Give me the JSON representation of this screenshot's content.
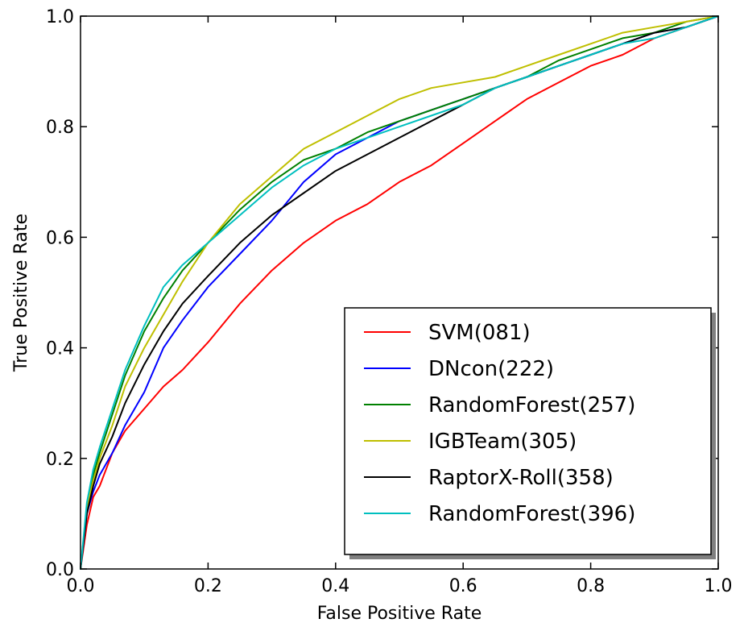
{
  "chart_data": {
    "type": "line",
    "title": "",
    "xlabel": "False Positive Rate",
    "ylabel": "True Positive Rate",
    "xlim": [
      0.0,
      1.0
    ],
    "ylim": [
      0.0,
      1.0
    ],
    "xticks": [
      "0.0",
      "0.2",
      "0.4",
      "0.6",
      "0.8",
      "1.0"
    ],
    "yticks": [
      "0.0",
      "0.2",
      "0.4",
      "0.6",
      "0.8",
      "1.0"
    ],
    "grid": false,
    "legend_position": "lower-right",
    "series": [
      {
        "name": "SVM(081)",
        "color": "#ff0000",
        "x": [
          0.0,
          0.01,
          0.02,
          0.03,
          0.05,
          0.07,
          0.1,
          0.13,
          0.16,
          0.2,
          0.25,
          0.3,
          0.35,
          0.4,
          0.45,
          0.5,
          0.55,
          0.6,
          0.65,
          0.7,
          0.75,
          0.8,
          0.85,
          0.9,
          0.95,
          1.0
        ],
        "y": [
          0.0,
          0.08,
          0.13,
          0.15,
          0.21,
          0.25,
          0.29,
          0.33,
          0.36,
          0.41,
          0.48,
          0.54,
          0.59,
          0.63,
          0.66,
          0.7,
          0.73,
          0.77,
          0.81,
          0.85,
          0.88,
          0.91,
          0.93,
          0.96,
          0.98,
          1.0
        ]
      },
      {
        "name": "DNcon(222)",
        "color": "#0000ff",
        "x": [
          0.0,
          0.01,
          0.02,
          0.03,
          0.05,
          0.07,
          0.1,
          0.13,
          0.16,
          0.2,
          0.25,
          0.3,
          0.35,
          0.4,
          0.45,
          0.5,
          0.55,
          0.6,
          0.65,
          0.7,
          0.75,
          0.8,
          0.85,
          0.9,
          0.95,
          1.0
        ],
        "y": [
          0.0,
          0.1,
          0.14,
          0.17,
          0.21,
          0.26,
          0.32,
          0.4,
          0.45,
          0.51,
          0.57,
          0.63,
          0.7,
          0.75,
          0.78,
          0.81,
          0.83,
          0.85,
          0.87,
          0.89,
          0.91,
          0.93,
          0.95,
          0.97,
          0.98,
          1.0
        ]
      },
      {
        "name": "RandomForest(257)",
        "color": "#008000",
        "x": [
          0.0,
          0.01,
          0.02,
          0.03,
          0.05,
          0.07,
          0.1,
          0.13,
          0.16,
          0.2,
          0.25,
          0.3,
          0.35,
          0.4,
          0.45,
          0.5,
          0.55,
          0.6,
          0.65,
          0.7,
          0.75,
          0.8,
          0.85,
          0.9,
          0.95,
          1.0
        ],
        "y": [
          0.0,
          0.11,
          0.17,
          0.21,
          0.28,
          0.35,
          0.43,
          0.49,
          0.54,
          0.59,
          0.65,
          0.7,
          0.74,
          0.76,
          0.79,
          0.81,
          0.83,
          0.85,
          0.87,
          0.89,
          0.92,
          0.94,
          0.96,
          0.97,
          0.99,
          1.0
        ]
      },
      {
        "name": "IGBTeam(305)",
        "color": "#bfbf00",
        "x": [
          0.0,
          0.01,
          0.02,
          0.03,
          0.05,
          0.07,
          0.1,
          0.13,
          0.16,
          0.2,
          0.25,
          0.3,
          0.35,
          0.4,
          0.45,
          0.5,
          0.55,
          0.6,
          0.65,
          0.7,
          0.75,
          0.8,
          0.85,
          0.9,
          0.95,
          1.0
        ],
        "y": [
          0.0,
          0.11,
          0.16,
          0.2,
          0.26,
          0.33,
          0.4,
          0.46,
          0.52,
          0.59,
          0.66,
          0.71,
          0.76,
          0.79,
          0.82,
          0.85,
          0.87,
          0.88,
          0.89,
          0.91,
          0.93,
          0.95,
          0.97,
          0.98,
          0.99,
          1.0
        ]
      },
      {
        "name": "RaptorX-Roll(358)",
        "color": "#000000",
        "x": [
          0.0,
          0.01,
          0.02,
          0.03,
          0.05,
          0.07,
          0.1,
          0.13,
          0.16,
          0.2,
          0.25,
          0.3,
          0.35,
          0.4,
          0.45,
          0.5,
          0.55,
          0.6,
          0.65,
          0.7,
          0.75,
          0.8,
          0.85,
          0.9,
          0.95,
          1.0
        ],
        "y": [
          0.0,
          0.1,
          0.15,
          0.19,
          0.24,
          0.3,
          0.37,
          0.43,
          0.48,
          0.53,
          0.59,
          0.64,
          0.68,
          0.72,
          0.75,
          0.78,
          0.81,
          0.84,
          0.87,
          0.89,
          0.91,
          0.93,
          0.95,
          0.97,
          0.98,
          1.0
        ]
      },
      {
        "name": "RandomForest(396)",
        "color": "#00bfbf",
        "x": [
          0.0,
          0.01,
          0.02,
          0.03,
          0.05,
          0.07,
          0.1,
          0.13,
          0.16,
          0.2,
          0.25,
          0.3,
          0.35,
          0.4,
          0.45,
          0.5,
          0.55,
          0.6,
          0.65,
          0.7,
          0.75,
          0.8,
          0.85,
          0.9,
          0.95,
          1.0
        ],
        "y": [
          0.0,
          0.12,
          0.18,
          0.22,
          0.29,
          0.36,
          0.44,
          0.51,
          0.55,
          0.59,
          0.64,
          0.69,
          0.73,
          0.76,
          0.78,
          0.8,
          0.82,
          0.84,
          0.87,
          0.89,
          0.91,
          0.93,
          0.95,
          0.96,
          0.98,
          1.0
        ]
      }
    ]
  }
}
